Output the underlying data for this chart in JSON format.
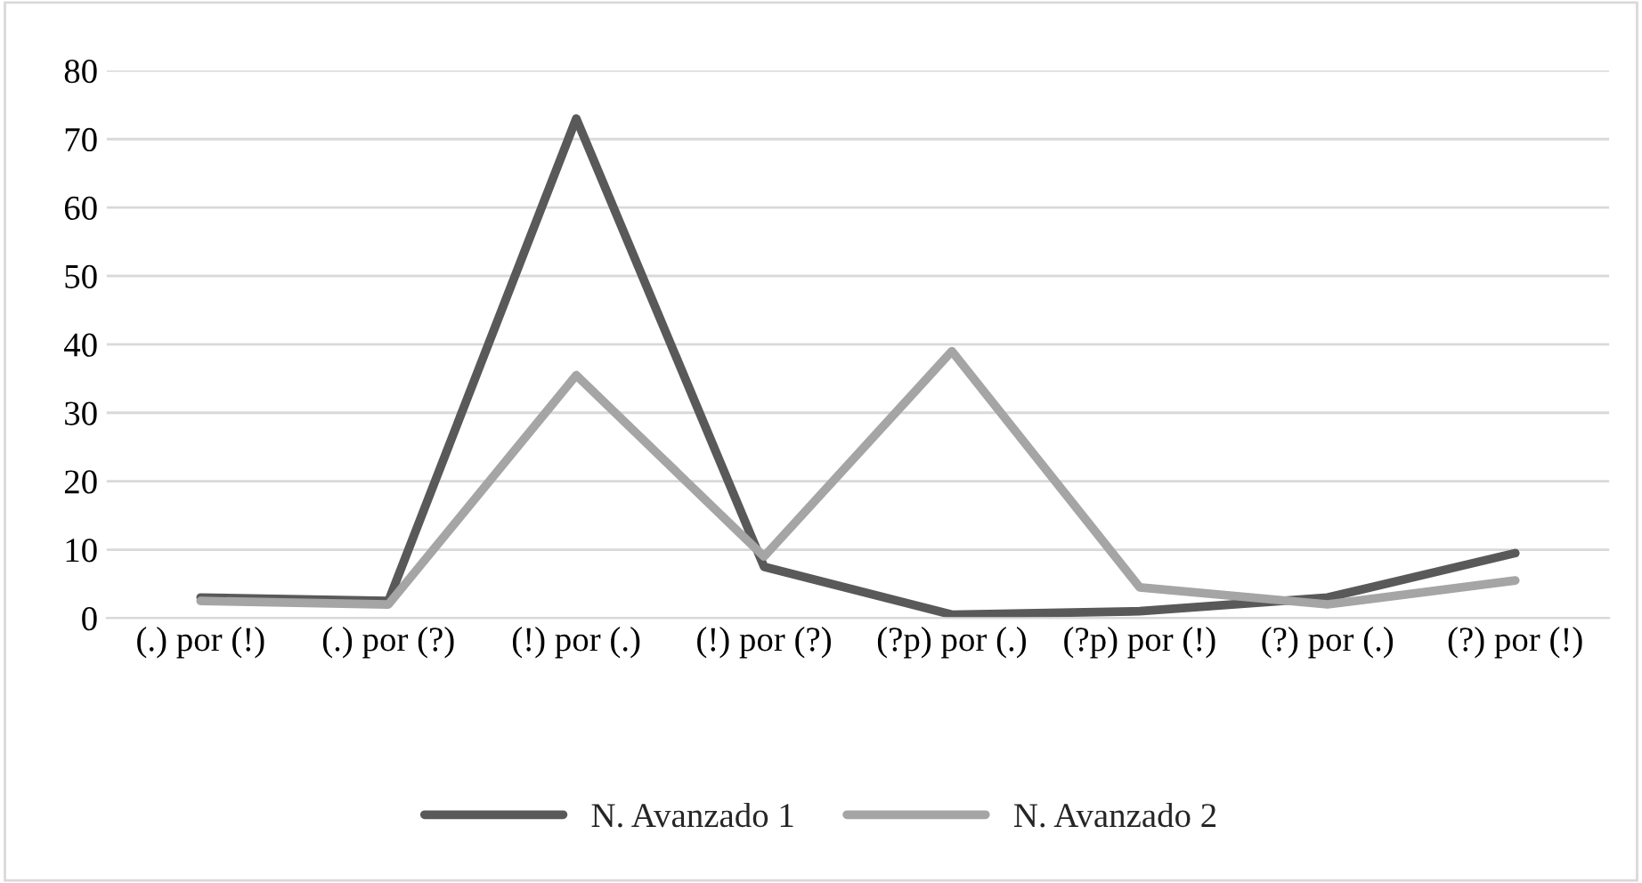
{
  "chart_data": {
    "type": "line",
    "categories": [
      "(.) por (!)",
      "(.) por (?)",
      "(!) por (.)",
      "(!) por (?)",
      "(?p) por (.)",
      "(?p) por (!)",
      "(?) por (.)",
      "(?) por (!)"
    ],
    "series": [
      {
        "name": "N. Avanzado 1",
        "color": "#595959",
        "values": [
          3,
          2.5,
          73,
          7.5,
          0.5,
          1,
          3,
          9.5
        ]
      },
      {
        "name": "N. Avanzado 2",
        "color": "#a5a5a5",
        "values": [
          2.5,
          2,
          35.5,
          9,
          39,
          4.5,
          2,
          5.5
        ]
      }
    ],
    "ylim": [
      0,
      80
    ],
    "yticks": [
      0,
      10,
      20,
      30,
      40,
      50,
      60,
      70,
      80
    ],
    "grid": "y",
    "legend": "bottom",
    "marker": "none",
    "line_style": "solid"
  }
}
